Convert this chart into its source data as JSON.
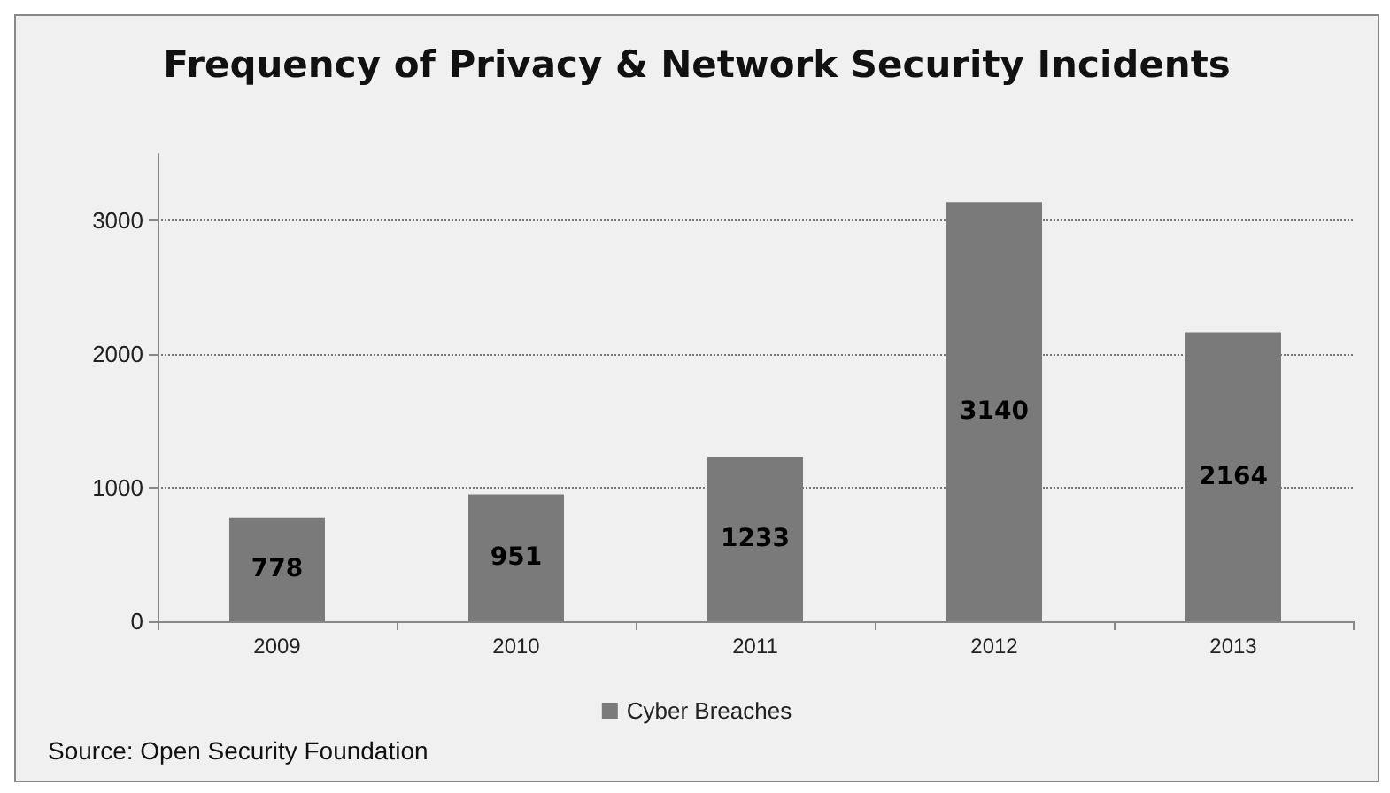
{
  "chart_data": {
    "type": "bar",
    "title": "Frequency of Privacy & Network Security Incidents",
    "categories": [
      "2009",
      "2010",
      "2011",
      "2012",
      "2013"
    ],
    "series": [
      {
        "name": "Cyber Breaches",
        "color": "#7a7a7a",
        "values": [
          778,
          951,
          1233,
          3140,
          2164
        ]
      }
    ],
    "ylim": [
      0,
      3500
    ],
    "yticks": [
      0,
      1000,
      2000,
      3000
    ],
    "grid": "y",
    "legend": "bottom",
    "data_labels": true,
    "annotations": [
      "Source: Open Security Foundation"
    ]
  }
}
